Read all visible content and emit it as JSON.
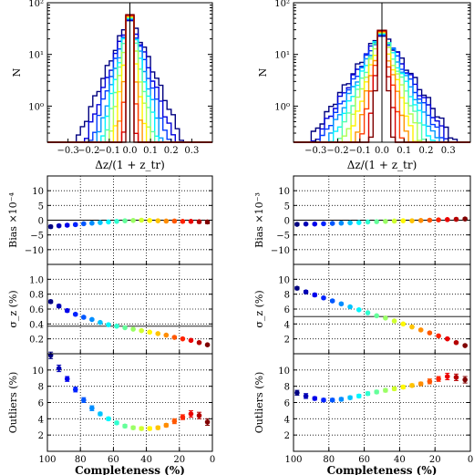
{
  "chart_data": [
    {
      "id": "hist-left",
      "type": "histogram",
      "xlabel": "Δz/(1 + z_tr)",
      "ylabel": "N",
      "xlim": [
        -0.4,
        0.4
      ],
      "ylim": [
        0.2,
        100
      ],
      "yscale": "log",
      "xticks": [
        "−0.3",
        "−0.2",
        "−0.1",
        "0.0",
        "0.1",
        "0.2",
        "0.3"
      ],
      "yticks": [
        "10⁰",
        "10¹",
        "10²"
      ],
      "series_widths": [
        0.13,
        0.11,
        0.095,
        0.08,
        0.07,
        0.06,
        0.05,
        0.04,
        0.03,
        0.022,
        0.016,
        0.012
      ],
      "peak": 60,
      "bin_width": 0.02
    },
    {
      "id": "hist-right",
      "type": "histogram",
      "xlabel": "Δz/(1 + z_tr)",
      "ylabel": "N",
      "xlim": [
        -0.4,
        0.4
      ],
      "ylim": [
        0.2,
        100
      ],
      "yscale": "log",
      "xticks": [
        "−0.3",
        "−0.2",
        "−0.1",
        "0.0",
        "0.1",
        "0.2",
        "0.3"
      ],
      "yticks": [
        "10⁰",
        "10¹",
        "10²"
      ],
      "series_widths": [
        0.19,
        0.175,
        0.16,
        0.145,
        0.13,
        0.115,
        0.1,
        0.085,
        0.07,
        0.055,
        0.04,
        0.03
      ],
      "peak": 30,
      "bin_width": 0.02
    },
    {
      "id": "bias-left",
      "type": "scatter",
      "ylabel": "Bias ×10⁻⁴",
      "xlim": [
        100,
        0
      ],
      "ylim": [
        -15,
        15
      ],
      "yticks": [
        "−10",
        "−5",
        "0",
        "5",
        "10"
      ],
      "hline": 0,
      "x": [
        98,
        93,
        88,
        83,
        78,
        73,
        68,
        63,
        58,
        53,
        48,
        43,
        38,
        33,
        28,
        23,
        18,
        13,
        8,
        3
      ],
      "y": [
        -2.2,
        -1.9,
        -1.7,
        -1.5,
        -1.2,
        -1.0,
        -0.8,
        -0.6,
        -0.4,
        -0.2,
        -0.1,
        0.0,
        -0.1,
        -0.2,
        -0.3,
        -0.3,
        -0.4,
        -0.4,
        -0.5,
        -0.6
      ],
      "err": [
        0.5,
        0.4,
        0.4,
        0.4,
        0.3,
        0.3,
        0.3,
        0.3,
        0.3,
        0.3,
        0.3,
        0.3,
        0.3,
        0.3,
        0.3,
        0.4,
        0.4,
        0.4,
        0.5,
        0.6
      ]
    },
    {
      "id": "bias-right",
      "type": "scatter",
      "ylabel": "Bias ×10⁻³",
      "xlim": [
        100,
        0
      ],
      "ylim": [
        -15,
        15
      ],
      "yticks": [
        "−10",
        "−5",
        "0",
        "5",
        "10"
      ],
      "hline": 0,
      "x": [
        98,
        93,
        88,
        83,
        78,
        73,
        68,
        63,
        58,
        53,
        48,
        43,
        38,
        33,
        28,
        23,
        18,
        13,
        8,
        3
      ],
      "y": [
        -1.4,
        -1.3,
        -1.3,
        -1.2,
        -1.1,
        -1.0,
        -0.9,
        -0.8,
        -0.6,
        -0.5,
        -0.4,
        -0.3,
        -0.2,
        -0.2,
        -0.1,
        0.0,
        0.1,
        0.2,
        0.3,
        0.4
      ],
      "err": [
        0.4,
        0.3,
        0.3,
        0.3,
        0.3,
        0.3,
        0.3,
        0.3,
        0.3,
        0.3,
        0.3,
        0.3,
        0.3,
        0.3,
        0.3,
        0.3,
        0.3,
        0.3,
        0.4,
        0.4
      ]
    },
    {
      "id": "sigma-left",
      "type": "scatter",
      "ylabel": "σ_z (%)",
      "xlim": [
        100,
        0
      ],
      "ylim": [
        0,
        1.2
      ],
      "yticks": [
        "0.2",
        "0.4",
        "0.6",
        "0.8",
        "1.0"
      ],
      "hline": 0.37,
      "x": [
        98,
        93,
        88,
        83,
        78,
        73,
        68,
        63,
        58,
        53,
        48,
        43,
        38,
        33,
        28,
        23,
        18,
        13,
        8,
        3
      ],
      "y": [
        0.7,
        0.64,
        0.58,
        0.53,
        0.49,
        0.46,
        0.42,
        0.39,
        0.37,
        0.35,
        0.33,
        0.31,
        0.29,
        0.27,
        0.25,
        0.22,
        0.2,
        0.18,
        0.15,
        0.12
      ],
      "err": [
        0.02,
        0.02,
        0.02,
        0.015,
        0.015,
        0.012,
        0.01,
        0.01,
        0.01,
        0.01,
        0.01,
        0.01,
        0.01,
        0.01,
        0.01,
        0.01,
        0.01,
        0.01,
        0.01,
        0.01
      ]
    },
    {
      "id": "sigma-right",
      "type": "scatter",
      "ylabel": "σ_z (%)",
      "xlim": [
        100,
        0
      ],
      "ylim": [
        0,
        12
      ],
      "yticks": [
        "2",
        "4",
        "6",
        "8",
        "10"
      ],
      "hline": 5,
      "x": [
        98,
        93,
        88,
        83,
        78,
        73,
        68,
        63,
        58,
        53,
        48,
        43,
        38,
        33,
        28,
        23,
        18,
        13,
        8,
        3
      ],
      "y": [
        8.8,
        8.3,
        7.9,
        7.5,
        7.1,
        6.7,
        6.3,
        5.9,
        5.5,
        5.1,
        4.8,
        4.4,
        4.0,
        3.6,
        3.2,
        2.8,
        2.4,
        2.0,
        1.5,
        1.1
      ],
      "err": [
        0.2,
        0.2,
        0.2,
        0.15,
        0.15,
        0.15,
        0.12,
        0.12,
        0.1,
        0.1,
        0.1,
        0.1,
        0.1,
        0.1,
        0.1,
        0.1,
        0.1,
        0.1,
        0.1,
        0.1
      ]
    },
    {
      "id": "outliers-left",
      "type": "scatter",
      "ylabel": "Outliers (%)",
      "xlabel": "Completeness (%)",
      "xlim": [
        100,
        0
      ],
      "ylim": [
        0,
        12
      ],
      "yticks": [
        "2",
        "4",
        "6",
        "8",
        "10"
      ],
      "xticks": [
        "100",
        "80",
        "60",
        "40",
        "20",
        "0"
      ],
      "x": [
        98,
        93,
        88,
        83,
        78,
        73,
        68,
        63,
        58,
        53,
        48,
        43,
        38,
        33,
        28,
        23,
        18,
        13,
        8,
        3
      ],
      "y": [
        11.8,
        10.2,
        8.9,
        7.6,
        6.3,
        5.3,
        4.6,
        4.0,
        3.5,
        3.1,
        2.9,
        2.8,
        2.8,
        2.9,
        3.2,
        3.7,
        4.2,
        4.6,
        4.4,
        3.6
      ],
      "err": [
        0.4,
        0.4,
        0.3,
        0.3,
        0.3,
        0.3,
        0.2,
        0.2,
        0.2,
        0.2,
        0.2,
        0.2,
        0.2,
        0.2,
        0.2,
        0.3,
        0.3,
        0.4,
        0.4,
        0.4
      ]
    },
    {
      "id": "outliers-right",
      "type": "scatter",
      "ylabel": "Outliers (%)",
      "xlabel": "Completeness (%)",
      "xlim": [
        100,
        0
      ],
      "ylim": [
        0,
        12
      ],
      "yticks": [
        "2",
        "4",
        "6",
        "8",
        "10"
      ],
      "xticks": [
        "100",
        "80",
        "60",
        "40",
        "20",
        "0"
      ],
      "x": [
        98,
        93,
        88,
        83,
        78,
        73,
        68,
        63,
        58,
        53,
        48,
        43,
        38,
        33,
        28,
        23,
        18,
        13,
        8,
        3
      ],
      "y": [
        7.2,
        6.8,
        6.5,
        6.3,
        6.3,
        6.4,
        6.6,
        6.8,
        7.1,
        7.3,
        7.5,
        7.7,
        7.9,
        8.1,
        8.3,
        8.6,
        8.9,
        9.2,
        9.1,
        8.8
      ],
      "err": [
        0.3,
        0.3,
        0.2,
        0.2,
        0.2,
        0.2,
        0.2,
        0.2,
        0.2,
        0.2,
        0.2,
        0.2,
        0.2,
        0.2,
        0.2,
        0.3,
        0.3,
        0.4,
        0.4,
        0.4
      ]
    }
  ]
}
